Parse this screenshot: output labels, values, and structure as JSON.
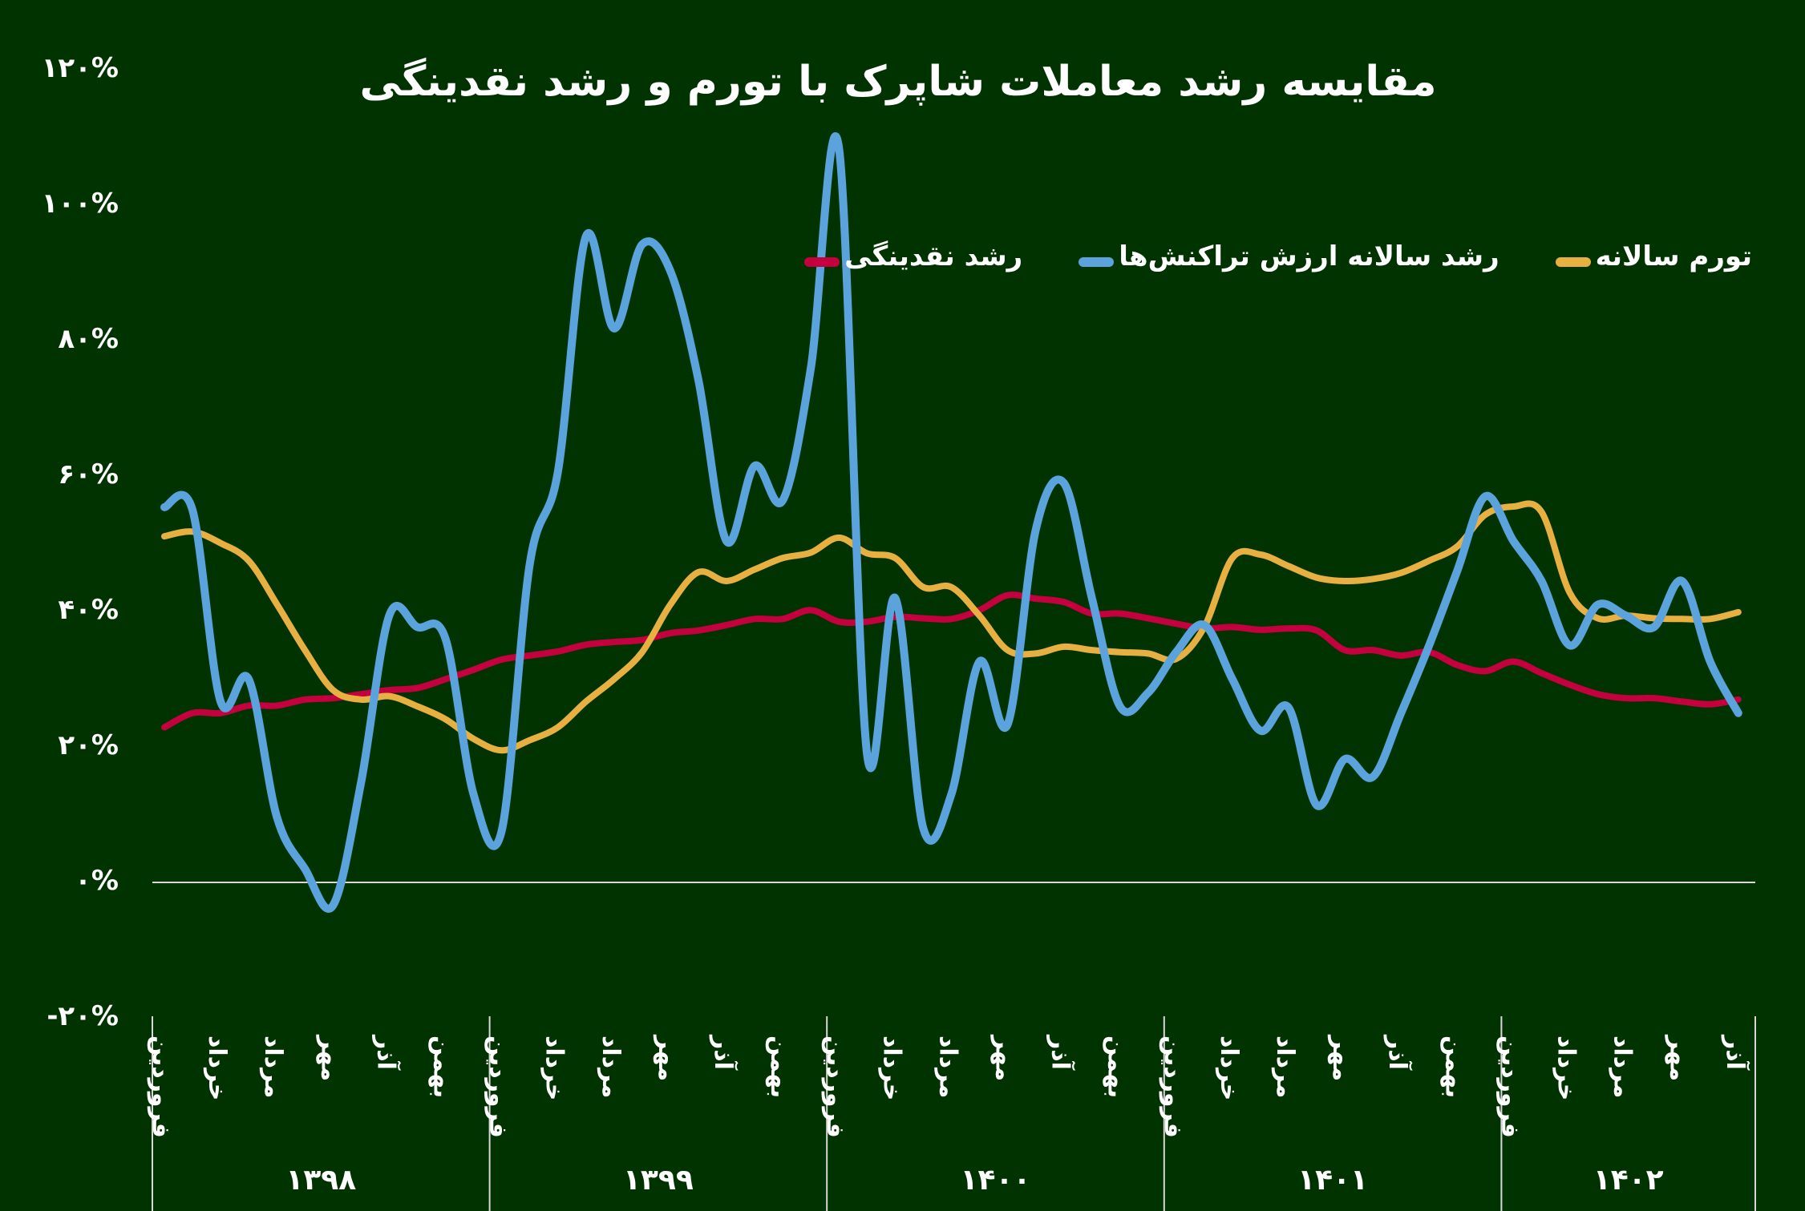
{
  "chart_data": {
    "type": "line",
    "title": "مقایسه رشد معاملات شاپرک با تورم و رشد نقدینگی",
    "ylim": [
      -20,
      120
    ],
    "yticks": [
      120,
      100,
      80,
      60,
      40,
      20,
      0,
      -20
    ],
    "ytick_labels": [
      "۱۲۰%",
      "۱۰۰%",
      "۸۰%",
      "۶۰%",
      "۴۰%",
      "۲۰%",
      "۰%",
      "-۲۰%"
    ],
    "years": [
      "۱۳۹۸",
      "۱۳۹۹",
      "۱۴۰۰",
      "۱۴۰۱",
      "۱۴۰۲"
    ],
    "month_tick_labels": [
      "فروردین",
      "خرداد",
      "مرداد",
      "مهر",
      "آذر",
      "بهمن"
    ],
    "months_in_last_year": 9,
    "grid": false,
    "legend_position": "top-right",
    "series": [
      {
        "name": "تورم سالانه",
        "color": "#E8B040",
        "values": [
          51.1,
          51.8,
          50.1,
          47.5,
          41.1,
          34.3,
          28.4,
          27,
          27.5,
          26,
          24.1,
          21.2,
          19.5,
          21,
          22.9,
          26.7,
          30,
          34,
          41,
          45.8,
          44.5,
          46.2,
          47.9,
          48.7,
          50.9,
          48.6,
          47.9,
          43.6,
          43.6,
          39.4,
          34.3,
          33.8,
          34.8,
          34.3,
          34,
          33.8,
          33,
          37.7,
          47.9,
          48.4,
          46.7,
          45,
          44.5,
          44.8,
          45.7,
          47.5,
          49.6,
          54.3,
          55.5,
          54.7,
          42.8,
          39,
          39.4,
          39,
          38.9,
          38.9,
          39.9
        ]
      },
      {
        "name": "رشد سالانه ارزش تراکنش‌ها",
        "color": "#5BA3DC",
        "values": [
          55.4,
          55,
          26.7,
          30,
          9.7,
          2,
          -3.4,
          14.8,
          39.4,
          37.7,
          36,
          13,
          7.6,
          47,
          60.6,
          95.4,
          81.8,
          94.2,
          90.3,
          74.2,
          50.4,
          61.5,
          56.4,
          75.9,
          108.5,
          19,
          42,
          8,
          13,
          32.6,
          23.3,
          52,
          59,
          42,
          26,
          28,
          34,
          38,
          30,
          22.4,
          25.8,
          11.4,
          18.2,
          15.6,
          25,
          35,
          46,
          57,
          50.4,
          44.5,
          35,
          41,
          39.4,
          37.7,
          44.5,
          32.6,
          25
        ]
      },
      {
        "name": "رشد نقدینگی",
        "color": "#C4003F",
        "values": [
          22.9,
          25,
          25,
          26.1,
          26.1,
          27,
          27.2,
          27.8,
          28.4,
          28.7,
          30,
          31.4,
          32.9,
          33.5,
          34.1,
          35.1,
          35.5,
          35.8,
          36.8,
          37.2,
          38,
          38.9,
          38.9,
          40.2,
          38.5,
          38.5,
          39.2,
          39,
          38.9,
          40.2,
          42.4,
          41.9,
          41.4,
          39.7,
          39.7,
          39,
          38.2,
          37.5,
          37.7,
          37.3,
          37.5,
          37.2,
          34.3,
          34.3,
          33.5,
          34,
          32.1,
          31.2,
          32.6,
          30.9,
          29.2,
          27.8,
          27.2,
          27.2,
          26.7,
          26.3,
          27
        ]
      }
    ]
  }
}
